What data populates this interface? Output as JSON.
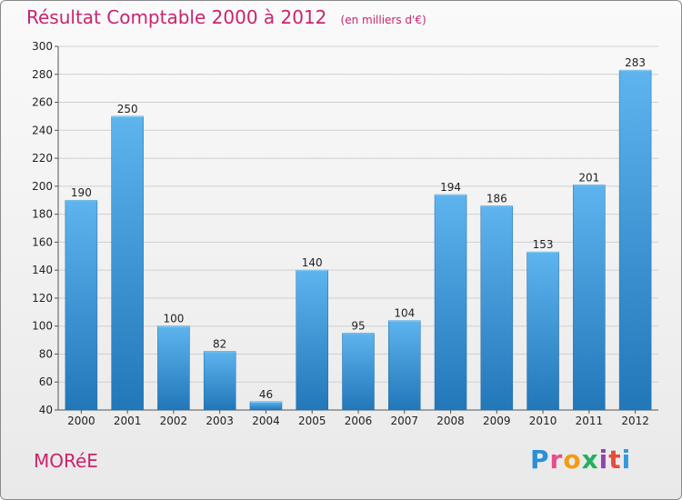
{
  "header": {
    "title": "Résultat Comptable 2000 à 2012",
    "unit": "(en milliers d'€)"
  },
  "footer": {
    "town": "MORéE",
    "logo_text": "Proxiti"
  },
  "colors": {
    "title": "#c9246d",
    "bar_top": "#5db4ee",
    "bar_bottom": "#2277b9",
    "grid": "#cfcfcf"
  },
  "chart_data": {
    "type": "bar",
    "categories": [
      "2000",
      "2001",
      "2002",
      "2003",
      "2004",
      "2005",
      "2006",
      "2007",
      "2008",
      "2009",
      "2010",
      "2011",
      "2012"
    ],
    "values": [
      190,
      250,
      100,
      82,
      46,
      140,
      95,
      104,
      194,
      186,
      153,
      201,
      283
    ],
    "title": "Résultat Comptable 2000 à 2012",
    "ylabel": "",
    "xlabel": "",
    "ylim": [
      40,
      300
    ],
    "yticks": [
      40,
      60,
      80,
      100,
      120,
      140,
      160,
      180,
      200,
      220,
      240,
      260,
      280,
      300
    ],
    "grid": true,
    "show_value_labels": true
  }
}
